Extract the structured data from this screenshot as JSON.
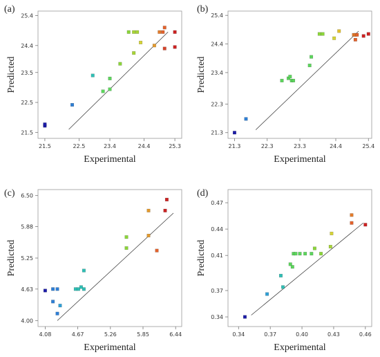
{
  "chart_data": [
    {
      "type": "scatter",
      "panel_label": "(a)",
      "xlabel": "Experimental",
      "ylabel": "Predicted",
      "xlim": [
        21.3,
        25.5
      ],
      "ylim": [
        21.3,
        25.55
      ],
      "xticks": [
        "21.5",
        "22.5",
        "23.4",
        "24.4",
        "25.3"
      ],
      "xtick_values": [
        21.5,
        22.5,
        23.4,
        24.4,
        25.3
      ],
      "yticks": [
        "21.5",
        "22.5",
        "23.5",
        "24.4",
        "25.4"
      ],
      "ytick_values": [
        21.5,
        22.5,
        23.5,
        24.4,
        25.4
      ],
      "fit_line": [
        [
          22.2,
          21.6
        ],
        [
          25.1,
          24.85
        ]
      ],
      "points": [
        {
          "x": 21.5,
          "y": 21.72,
          "color": "#1c1ca8"
        },
        {
          "x": 21.5,
          "y": 21.77,
          "color": "#1c1ca8"
        },
        {
          "x": 22.3,
          "y": 22.42,
          "color": "#2e7fd6"
        },
        {
          "x": 22.9,
          "y": 23.4,
          "color": "#2fbfb5"
        },
        {
          "x": 23.2,
          "y": 22.87,
          "color": "#5cd65c"
        },
        {
          "x": 23.4,
          "y": 22.94,
          "color": "#5cd65c"
        },
        {
          "x": 23.4,
          "y": 23.3,
          "color": "#5cd65c"
        },
        {
          "x": 23.7,
          "y": 23.79,
          "color": "#8cd63a"
        },
        {
          "x": 23.95,
          "y": 24.85,
          "color": "#8cd63a"
        },
        {
          "x": 24.1,
          "y": 24.85,
          "color": "#a8d636"
        },
        {
          "x": 24.2,
          "y": 24.85,
          "color": "#a8d636"
        },
        {
          "x": 24.1,
          "y": 24.15,
          "color": "#a8d636"
        },
        {
          "x": 24.3,
          "y": 24.5,
          "color": "#d6d436"
        },
        {
          "x": 24.7,
          "y": 24.4,
          "color": "#e39a2c"
        },
        {
          "x": 24.85,
          "y": 24.85,
          "color": "#e37c2c"
        },
        {
          "x": 24.95,
          "y": 24.85,
          "color": "#e3622c"
        },
        {
          "x": 25.0,
          "y": 25.0,
          "color": "#e3622c"
        },
        {
          "x": 25.0,
          "y": 24.3,
          "color": "#d6452c"
        },
        {
          "x": 25.3,
          "y": 24.85,
          "color": "#cc2222"
        },
        {
          "x": 25.3,
          "y": 24.35,
          "color": "#cc2222"
        }
      ]
    },
    {
      "type": "scatter",
      "panel_label": "(b)",
      "xlabel": "Experimental",
      "ylabel": "Predicted",
      "xlim": [
        21.1,
        25.5
      ],
      "ylim": [
        21.1,
        25.55
      ],
      "xticks": [
        "21.3",
        "22.3",
        "23.3",
        "24.4",
        "25.4"
      ],
      "xtick_values": [
        21.3,
        22.3,
        23.3,
        24.4,
        25.4
      ],
      "yticks": [
        "21.3",
        "22.3",
        "23.4",
        "24.4",
        "25.4"
      ],
      "ytick_values": [
        21.3,
        22.3,
        23.4,
        24.4,
        25.4
      ],
      "fit_line": [
        [
          21.95,
          21.4
        ],
        [
          25.1,
          24.85
        ]
      ],
      "points": [
        {
          "x": 21.3,
          "y": 21.3,
          "color": "#1c1ca8"
        },
        {
          "x": 21.65,
          "y": 21.78,
          "color": "#2e7fd6"
        },
        {
          "x": 22.75,
          "y": 23.12,
          "color": "#5cd65c"
        },
        {
          "x": 22.95,
          "y": 23.2,
          "color": "#5cd65c"
        },
        {
          "x": 23.0,
          "y": 23.26,
          "color": "#5cd65c"
        },
        {
          "x": 23.05,
          "y": 23.12,
          "color": "#5cd65c"
        },
        {
          "x": 23.1,
          "y": 23.12,
          "color": "#5cd65c"
        },
        {
          "x": 23.6,
          "y": 23.65,
          "color": "#5cd65c"
        },
        {
          "x": 23.65,
          "y": 23.95,
          "color": "#5cd65c"
        },
        {
          "x": 23.9,
          "y": 24.75,
          "color": "#8cd63a"
        },
        {
          "x": 24.0,
          "y": 24.75,
          "color": "#8cd63a"
        },
        {
          "x": 24.35,
          "y": 24.6,
          "color": "#d6d436"
        },
        {
          "x": 24.5,
          "y": 24.85,
          "color": "#e3c02c"
        },
        {
          "x": 24.95,
          "y": 24.72,
          "color": "#e37c2c"
        },
        {
          "x": 25.0,
          "y": 24.72,
          "color": "#e37c2c"
        },
        {
          "x": 25.05,
          "y": 24.72,
          "color": "#e3622c"
        },
        {
          "x": 25.0,
          "y": 24.55,
          "color": "#e3622c"
        },
        {
          "x": 25.25,
          "y": 24.68,
          "color": "#cc2222"
        },
        {
          "x": 25.4,
          "y": 24.75,
          "color": "#cc2222"
        }
      ]
    },
    {
      "type": "scatter",
      "panel_label": "(c)",
      "xlabel": "Experimental",
      "ylabel": "Predicted",
      "xlim": [
        3.95,
        6.55
      ],
      "ylim": [
        3.88,
        6.62
      ],
      "xticks": [
        "4.08",
        "4.67",
        "5.26",
        "5.85",
        "6.44"
      ],
      "xtick_values": [
        4.08,
        4.67,
        5.26,
        5.85,
        6.44
      ],
      "yticks": [
        "4.00",
        "4.63",
        "5.25",
        "5.88",
        "6.50"
      ],
      "ytick_values": [
        4.0,
        4.63,
        5.25,
        5.88,
        6.5
      ],
      "fit_line": [
        [
          4.3,
          4.0
        ],
        [
          6.4,
          6.15
        ]
      ],
      "points": [
        {
          "x": 4.08,
          "y": 4.6,
          "color": "#1c1ca8"
        },
        {
          "x": 4.22,
          "y": 4.63,
          "color": "#2e7fd6"
        },
        {
          "x": 4.22,
          "y": 4.38,
          "color": "#2e7fd6"
        },
        {
          "x": 4.3,
          "y": 4.63,
          "color": "#2e7fd6"
        },
        {
          "x": 4.3,
          "y": 4.14,
          "color": "#2e7fd6"
        },
        {
          "x": 4.35,
          "y": 4.3,
          "color": "#2e9fd6"
        },
        {
          "x": 4.63,
          "y": 4.63,
          "color": "#2fbfb5"
        },
        {
          "x": 4.68,
          "y": 4.63,
          "color": "#2fbfb5"
        },
        {
          "x": 4.73,
          "y": 4.67,
          "color": "#2fbfb5"
        },
        {
          "x": 4.78,
          "y": 4.63,
          "color": "#2fbfb5"
        },
        {
          "x": 4.78,
          "y": 5.0,
          "color": "#2fbfb5"
        },
        {
          "x": 5.55,
          "y": 5.67,
          "color": "#8cd63a"
        },
        {
          "x": 5.55,
          "y": 5.45,
          "color": "#8cd63a"
        },
        {
          "x": 5.95,
          "y": 6.2,
          "color": "#e39a2c"
        },
        {
          "x": 5.95,
          "y": 5.7,
          "color": "#e39a2c"
        },
        {
          "x": 6.1,
          "y": 5.4,
          "color": "#e3622c"
        },
        {
          "x": 6.25,
          "y": 6.2,
          "color": "#cc2222"
        },
        {
          "x": 6.28,
          "y": 6.42,
          "color": "#cc2222"
        }
      ]
    },
    {
      "type": "scatter",
      "panel_label": "(d)",
      "xlabel": "Experimental",
      "ylabel": "Predicted",
      "xlim": [
        0.33,
        0.466
      ],
      "ylim": [
        0.329,
        0.485
      ],
      "xticks": [
        "0.34",
        "0.37",
        "0.40",
        "0.43",
        "0.46"
      ],
      "xtick_values": [
        0.34,
        0.37,
        0.4,
        0.43,
        0.46
      ],
      "yticks": [
        "0.34",
        "0.37",
        "0.41",
        "0.44",
        "0.47"
      ],
      "ytick_values": [
        0.34,
        0.37,
        0.41,
        0.44,
        0.47
      ],
      "fit_line": [
        [
          0.352,
          0.342
        ],
        [
          0.458,
          0.447
        ]
      ],
      "points": [
        {
          "x": 0.346,
          "y": 0.34,
          "color": "#1c1ca8"
        },
        {
          "x": 0.367,
          "y": 0.366,
          "color": "#2e9fd6"
        },
        {
          "x": 0.38,
          "y": 0.387,
          "color": "#2fbfb5"
        },
        {
          "x": 0.382,
          "y": 0.374,
          "color": "#2fbfb5"
        },
        {
          "x": 0.389,
          "y": 0.4,
          "color": "#5cd65c"
        },
        {
          "x": 0.391,
          "y": 0.397,
          "color": "#5cd65c"
        },
        {
          "x": 0.392,
          "y": 0.412,
          "color": "#5cd65c"
        },
        {
          "x": 0.394,
          "y": 0.412,
          "color": "#5cd65c"
        },
        {
          "x": 0.398,
          "y": 0.412,
          "color": "#5cd65c"
        },
        {
          "x": 0.403,
          "y": 0.412,
          "color": "#5cd65c"
        },
        {
          "x": 0.409,
          "y": 0.412,
          "color": "#5cd65c"
        },
        {
          "x": 0.412,
          "y": 0.418,
          "color": "#8cd63a"
        },
        {
          "x": 0.418,
          "y": 0.412,
          "color": "#8cd63a"
        },
        {
          "x": 0.427,
          "y": 0.42,
          "color": "#a8d636"
        },
        {
          "x": 0.428,
          "y": 0.435,
          "color": "#d6d436"
        },
        {
          "x": 0.447,
          "y": 0.456,
          "color": "#e37c2c"
        },
        {
          "x": 0.447,
          "y": 0.447,
          "color": "#e3622c"
        },
        {
          "x": 0.46,
          "y": 0.445,
          "color": "#cc2222"
        }
      ]
    }
  ]
}
